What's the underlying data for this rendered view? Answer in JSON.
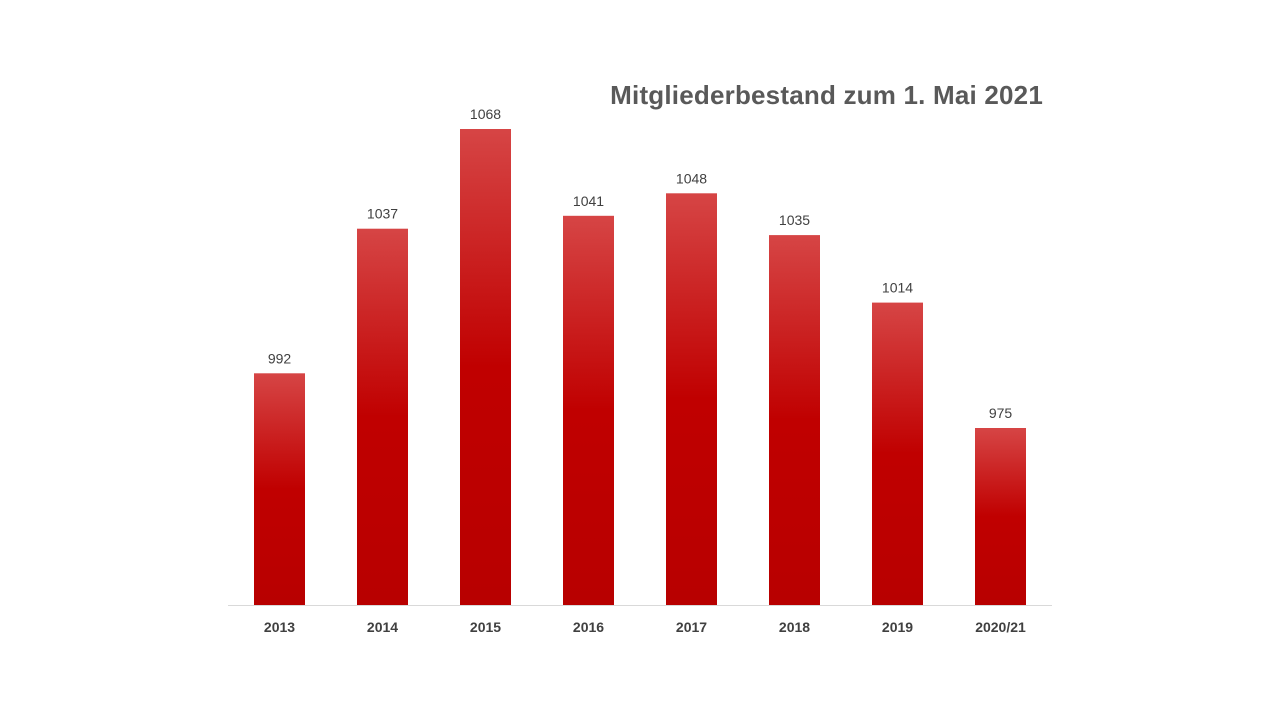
{
  "colors": {
    "bar_top": "#d64545",
    "bar_mid": "#c00000",
    "bar_bottom": "#b80000",
    "axis": "#d9d9d9",
    "title": "#595959",
    "text": "#404040"
  },
  "chart_data": {
    "type": "bar",
    "title": "Mitgliederbestand zum 1. Mai 2021",
    "xlabel": "",
    "ylabel": "",
    "categories": [
      "2013",
      "2014",
      "2015",
      "2016",
      "2017",
      "2018",
      "2019",
      "2020/21"
    ],
    "values": [
      992,
      1037,
      1068,
      1041,
      1048,
      1035,
      1014,
      975
    ],
    "data_labels": [
      "992",
      "1037",
      "1068",
      "1041",
      "1048",
      "1035",
      "1014",
      "975"
    ],
    "ylim": [
      936,
      1080
    ],
    "grid": false,
    "legend": "none"
  }
}
